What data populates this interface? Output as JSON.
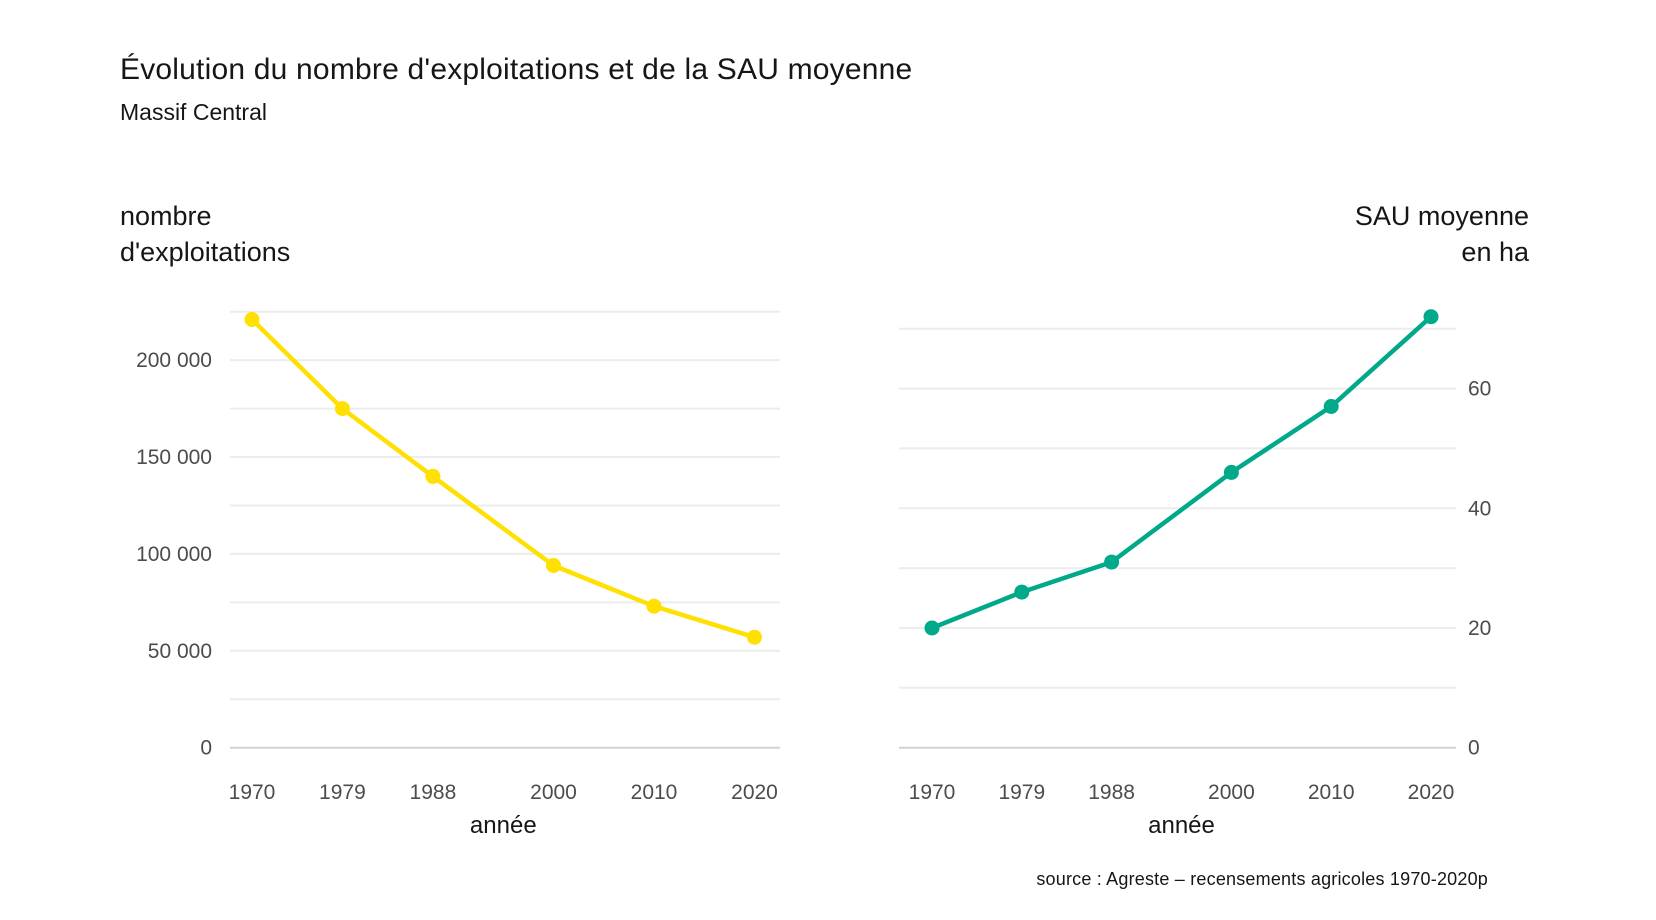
{
  "header": {
    "title": "Évolution du nombre d'exploitations et de la SAU moyenne",
    "subtitle": "Massif Central"
  },
  "source": "source : Agreste – recensements agricoles 1970-2020p",
  "colors": {
    "yellow_series": "#ffe000",
    "teal_series": "#00a98a",
    "grid": "#ececec",
    "zero_line": "#d2d2d2",
    "tick_text": "#4c4c4c",
    "text": "#161616"
  },
  "chart_data": [
    {
      "type": "line",
      "title": "nombre d'exploitations",
      "axis_title_lines": [
        "nombre",
        "d'exploitations"
      ],
      "color": "#ffe000",
      "xlabel": "année",
      "x": [
        1970,
        1979,
        1988,
        2000,
        2010,
        2020
      ],
      "x_labels": [
        "1970",
        "1979",
        "1988",
        "2000",
        "2010",
        "2020"
      ],
      "values": [
        221000,
        175000,
        140000,
        94000,
        73000,
        57000
      ],
      "ylim": [
        0,
        225000
      ],
      "grid_step": 25000,
      "yticks": [
        0,
        50000,
        100000,
        150000,
        200000
      ],
      "ytick_labels": [
        "0",
        "50 000",
        "100 000",
        "150 000",
        "200 000"
      ],
      "ytick_side": "left",
      "grid": true,
      "legend": "none"
    },
    {
      "type": "line",
      "title": "SAU moyenne en ha",
      "axis_title_lines": [
        "SAU moyenne",
        "en ha"
      ],
      "color": "#00a98a",
      "xlabel": "année",
      "x": [
        1970,
        1979,
        1988,
        2000,
        2010,
        2020
      ],
      "x_labels": [
        "1970",
        "1979",
        "1988",
        "2000",
        "2010",
        "2020"
      ],
      "values": [
        20,
        26,
        31,
        46,
        57,
        72
      ],
      "ylim": [
        0,
        70
      ],
      "grid_step": 10,
      "yticks": [
        0,
        20,
        40,
        60
      ],
      "ytick_labels": [
        "0",
        "20",
        "40",
        "60"
      ],
      "ytick_side": "right",
      "grid": true,
      "legend": "none"
    }
  ]
}
